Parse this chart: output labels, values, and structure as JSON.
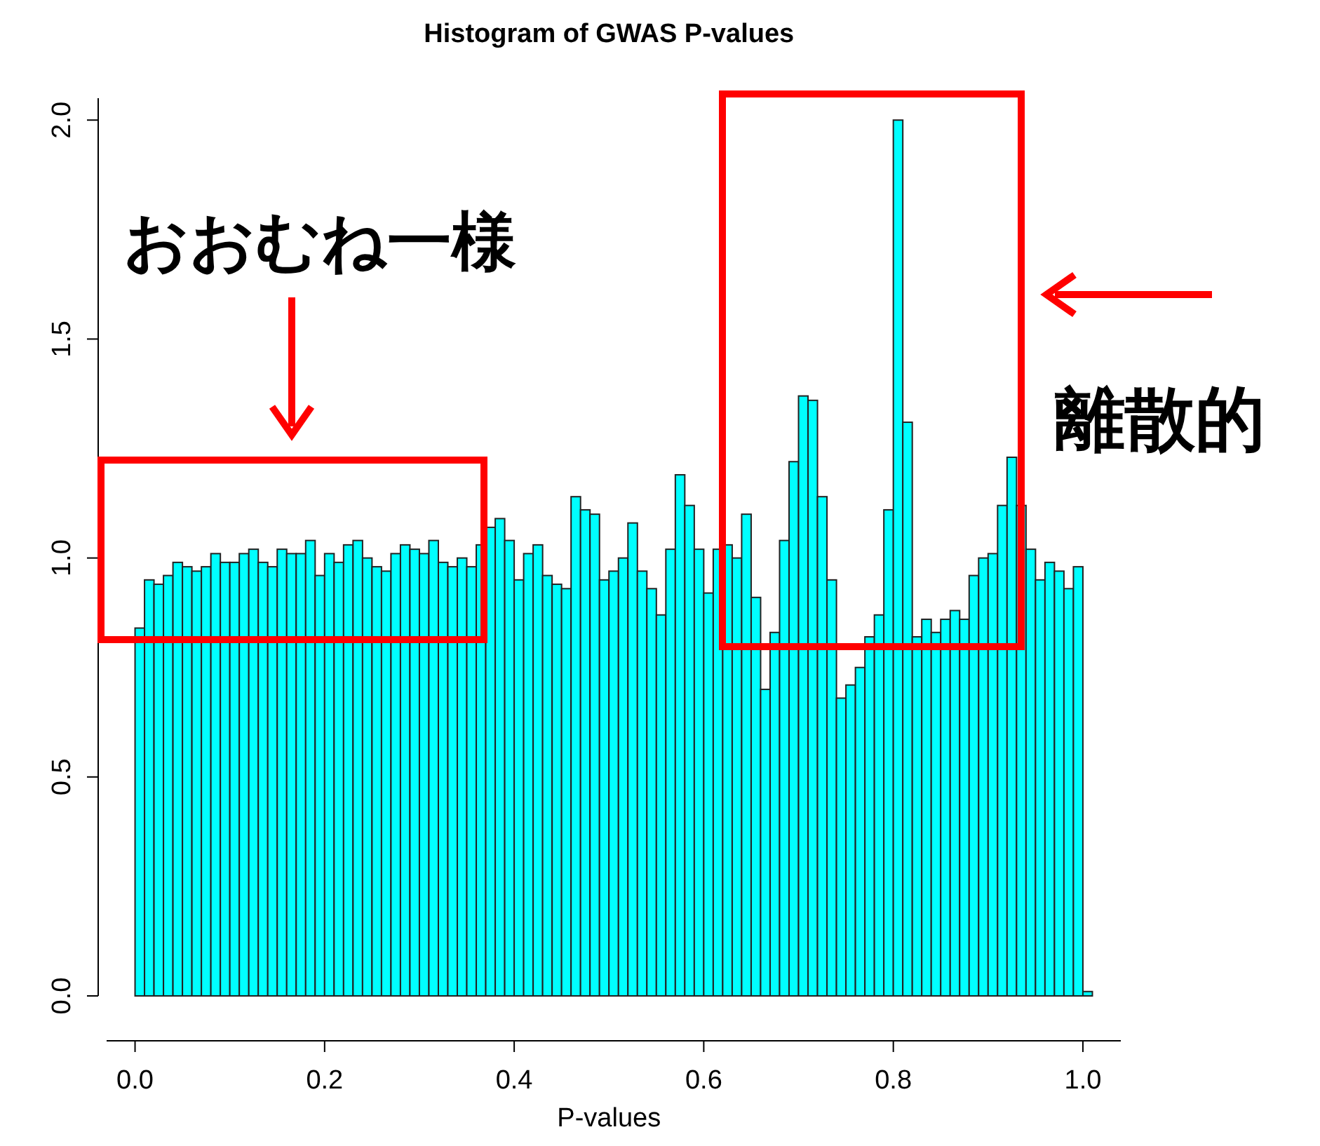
{
  "chart_data": {
    "type": "histogram",
    "title": "Histogram of GWAS P-values",
    "xlabel": "P-values",
    "bins": [
      0,
      0.01,
      0.02,
      0.03,
      0.04,
      0.05,
      0.06,
      0.07,
      0.08,
      0.09,
      0.1,
      0.11,
      0.12,
      0.13,
      0.14,
      0.15,
      0.16,
      0.17,
      0.18,
      0.19,
      0.2,
      0.21,
      0.22,
      0.23,
      0.24,
      0.25,
      0.26,
      0.27,
      0.28,
      0.29,
      0.3,
      0.31,
      0.32,
      0.33,
      0.34,
      0.35,
      0.36,
      0.37,
      0.38,
      0.39,
      0.4,
      0.41,
      0.42,
      0.43,
      0.44,
      0.45,
      0.46,
      0.47,
      0.48,
      0.49,
      0.5,
      0.51,
      0.52,
      0.53,
      0.54,
      0.55,
      0.56,
      0.57,
      0.58,
      0.59,
      0.6,
      0.61,
      0.62,
      0.63,
      0.64,
      0.65,
      0.66,
      0.67,
      0.68,
      0.69,
      0.7,
      0.71,
      0.72,
      0.73,
      0.74,
      0.75,
      0.76,
      0.77,
      0.78,
      0.79,
      0.8,
      0.81,
      0.82,
      0.83,
      0.84,
      0.85,
      0.86,
      0.87,
      0.88,
      0.89,
      0.9,
      0.91,
      0.92,
      0.93,
      0.94,
      0.95,
      0.96,
      0.97,
      0.98,
      0.99,
      1.0,
      1.01
    ],
    "values": [
      0.84,
      0.95,
      0.94,
      0.96,
      0.99,
      0.98,
      0.97,
      0.98,
      1.01,
      0.99,
      0.99,
      1.01,
      1.02,
      0.99,
      0.98,
      1.02,
      1.01,
      1.01,
      1.04,
      0.96,
      1.01,
      0.99,
      1.03,
      1.04,
      1.0,
      0.98,
      0.97,
      1.01,
      1.03,
      1.02,
      1.01,
      1.04,
      0.99,
      0.98,
      1.0,
      0.98,
      1.03,
      1.07,
      1.09,
      1.04,
      0.95,
      1.01,
      1.03,
      0.96,
      0.94,
      0.93,
      1.14,
      1.11,
      1.1,
      0.95,
      0.97,
      1.0,
      1.08,
      0.97,
      0.93,
      0.87,
      1.02,
      1.19,
      1.12,
      1.02,
      0.92,
      1.02,
      1.03,
      1.0,
      1.1,
      0.91,
      0.7,
      0.83,
      1.04,
      1.22,
      1.37,
      1.36,
      1.14,
      0.95,
      0.68,
      0.71,
      0.75,
      0.82,
      0.87,
      1.11,
      2.0,
      1.31,
      0.82,
      0.86,
      0.83,
      0.86,
      0.88,
      0.86,
      0.96,
      1.0,
      1.01,
      1.12,
      1.23,
      1.12,
      1.02,
      0.95,
      0.99,
      0.97,
      0.93,
      0.98,
      0.01
    ],
    "color": "#00ffff",
    "xlim": [
      -0.03,
      1.04
    ],
    "ylim": [
      0,
      2.05
    ],
    "xticks": [
      {
        "value": 0,
        "label": "0.0"
      },
      0.2,
      0.4,
      0.6,
      0.8,
      {
        "value": 1,
        "label": "1.0"
      }
    ],
    "yticks": [
      {
        "value": 0,
        "label": "0.0"
      },
      0.5,
      {
        "value": 1,
        "label": "1.0"
      },
      1.5,
      {
        "value": 2,
        "label": "2.0"
      }
    ],
    "grid": false,
    "annotations": [
      "おおむね一様",
      "離散的"
    ]
  }
}
